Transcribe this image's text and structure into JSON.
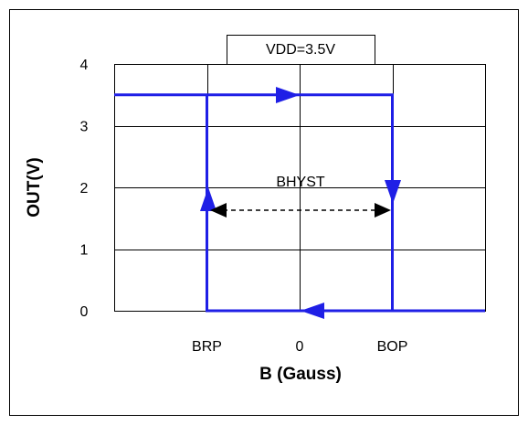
{
  "chart_data": {
    "type": "line",
    "title": "VDD=3.5V",
    "xlabel": "B (Gauss)",
    "ylabel": "OUT(V)",
    "annotation": "BHYST",
    "x": [
      -2,
      1,
      1,
      2,
      -1,
      -1
    ],
    "values": [
      3.5,
      3.5,
      0,
      0,
      0,
      3.5
    ],
    "color": "#1f1fe6",
    "xlim": [
      -2,
      2
    ],
    "xticks": [
      {
        "value": -1,
        "label": "BRP"
      },
      0,
      {
        "value": 1,
        "label": "BOP"
      }
    ],
    "ylim": [
      0,
      4
    ],
    "yticks": [
      0,
      1,
      2,
      3,
      4
    ],
    "grid": true
  }
}
